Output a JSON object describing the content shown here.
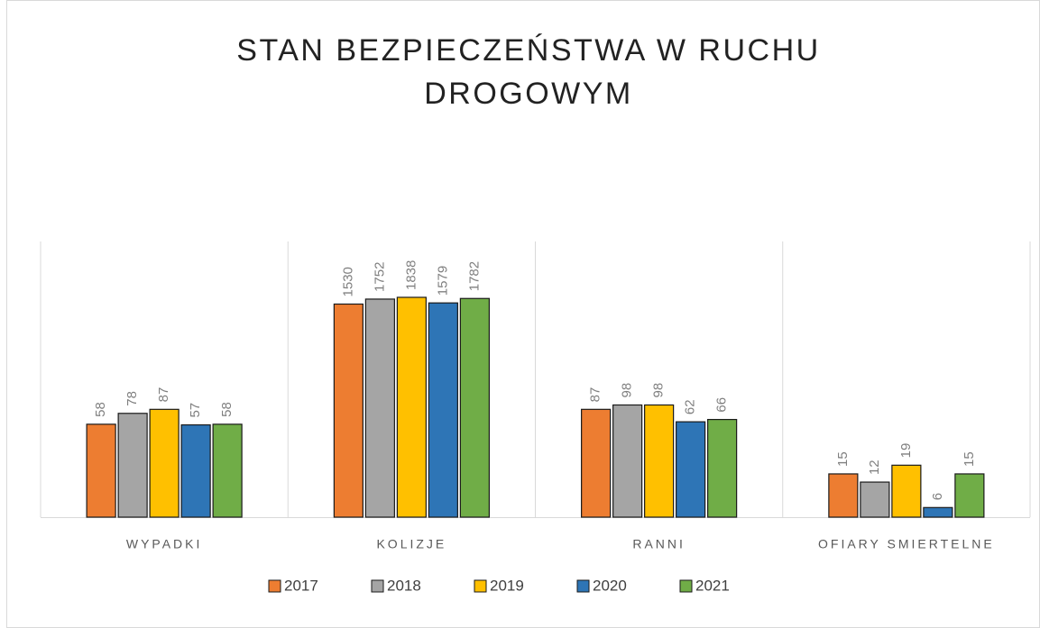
{
  "chart_data": {
    "type": "bar",
    "title": "STAN BEZPIECZEŃSTWA W RUCHU DROGOWYM",
    "categories": [
      "WYPADKI",
      "KOLIZJE",
      "RANNI",
      "OFIARY SMIERTELNE"
    ],
    "log": true,
    "series": [
      {
        "name": "2017",
        "color": "#ed7d31",
        "values": [
          58,
          1530,
          87,
          15
        ]
      },
      {
        "name": "2018",
        "color": "#a5a5a5",
        "values": [
          78,
          1752,
          98,
          12
        ]
      },
      {
        "name": "2019",
        "color": "#ffc000",
        "values": [
          87,
          1838,
          98,
          19
        ]
      },
      {
        "name": "2020",
        "color": "#2e75b6",
        "values": [
          57,
          1579,
          62,
          6
        ]
      },
      {
        "name": "2021",
        "color": "#70ad47",
        "values": [
          58,
          1782,
          66,
          15
        ]
      }
    ]
  }
}
